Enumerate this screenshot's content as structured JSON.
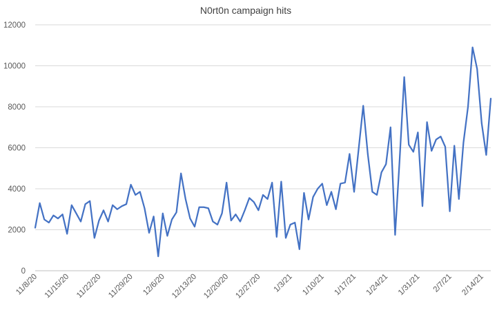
{
  "chart_data": {
    "type": "line",
    "title": "N0rt0n campaign hits",
    "xlabel": "",
    "ylabel": "",
    "ylim": [
      0,
      12000
    ],
    "yticks": [
      "0",
      "2000",
      "4000",
      "6000",
      "8000",
      "10000",
      "12000"
    ],
    "grid": true,
    "legend": "none",
    "x_tick_labels": [
      "11/8/20",
      "11/15/20",
      "11/22/20",
      "11/29/20",
      "12/6/20",
      "12/13/20",
      "12/20/20",
      "12/27/20",
      "1/3/21",
      "1/10/21",
      "1/17/21",
      "1/24/21",
      "1/31/21",
      "2/7/21",
      "2/14/21"
    ],
    "series": [
      {
        "color": "#4472c4",
        "values": [
          2100,
          3300,
          2500,
          2350,
          2700,
          2550,
          2750,
          1800,
          3200,
          2800,
          2400,
          3250,
          3400,
          1600,
          2450,
          2950,
          2400,
          3200,
          3000,
          3150,
          3250,
          4200,
          3700,
          3850,
          3050,
          1850,
          2650,
          700,
          2800,
          1700,
          2500,
          2850,
          4750,
          3500,
          2550,
          2150,
          3100,
          3100,
          3050,
          2400,
          2250,
          2800,
          4300,
          2450,
          2750,
          2400,
          2950,
          3550,
          3350,
          2950,
          3700,
          3500,
          4300,
          1650,
          4350,
          1600,
          2250,
          2350,
          1050,
          3800,
          2500,
          3600,
          4000,
          4250,
          3200,
          3850,
          3000,
          4250,
          4300,
          5700,
          3850,
          5950,
          8050,
          5700,
          3850,
          3700,
          4800,
          5200,
          7000,
          1750,
          5450,
          9450,
          6150,
          5800,
          6750,
          3150,
          7250,
          5850,
          6400,
          6550,
          6050,
          2900,
          6100,
          3500,
          6250,
          8000,
          10900,
          9850,
          7200,
          5650,
          8400
        ]
      }
    ]
  }
}
